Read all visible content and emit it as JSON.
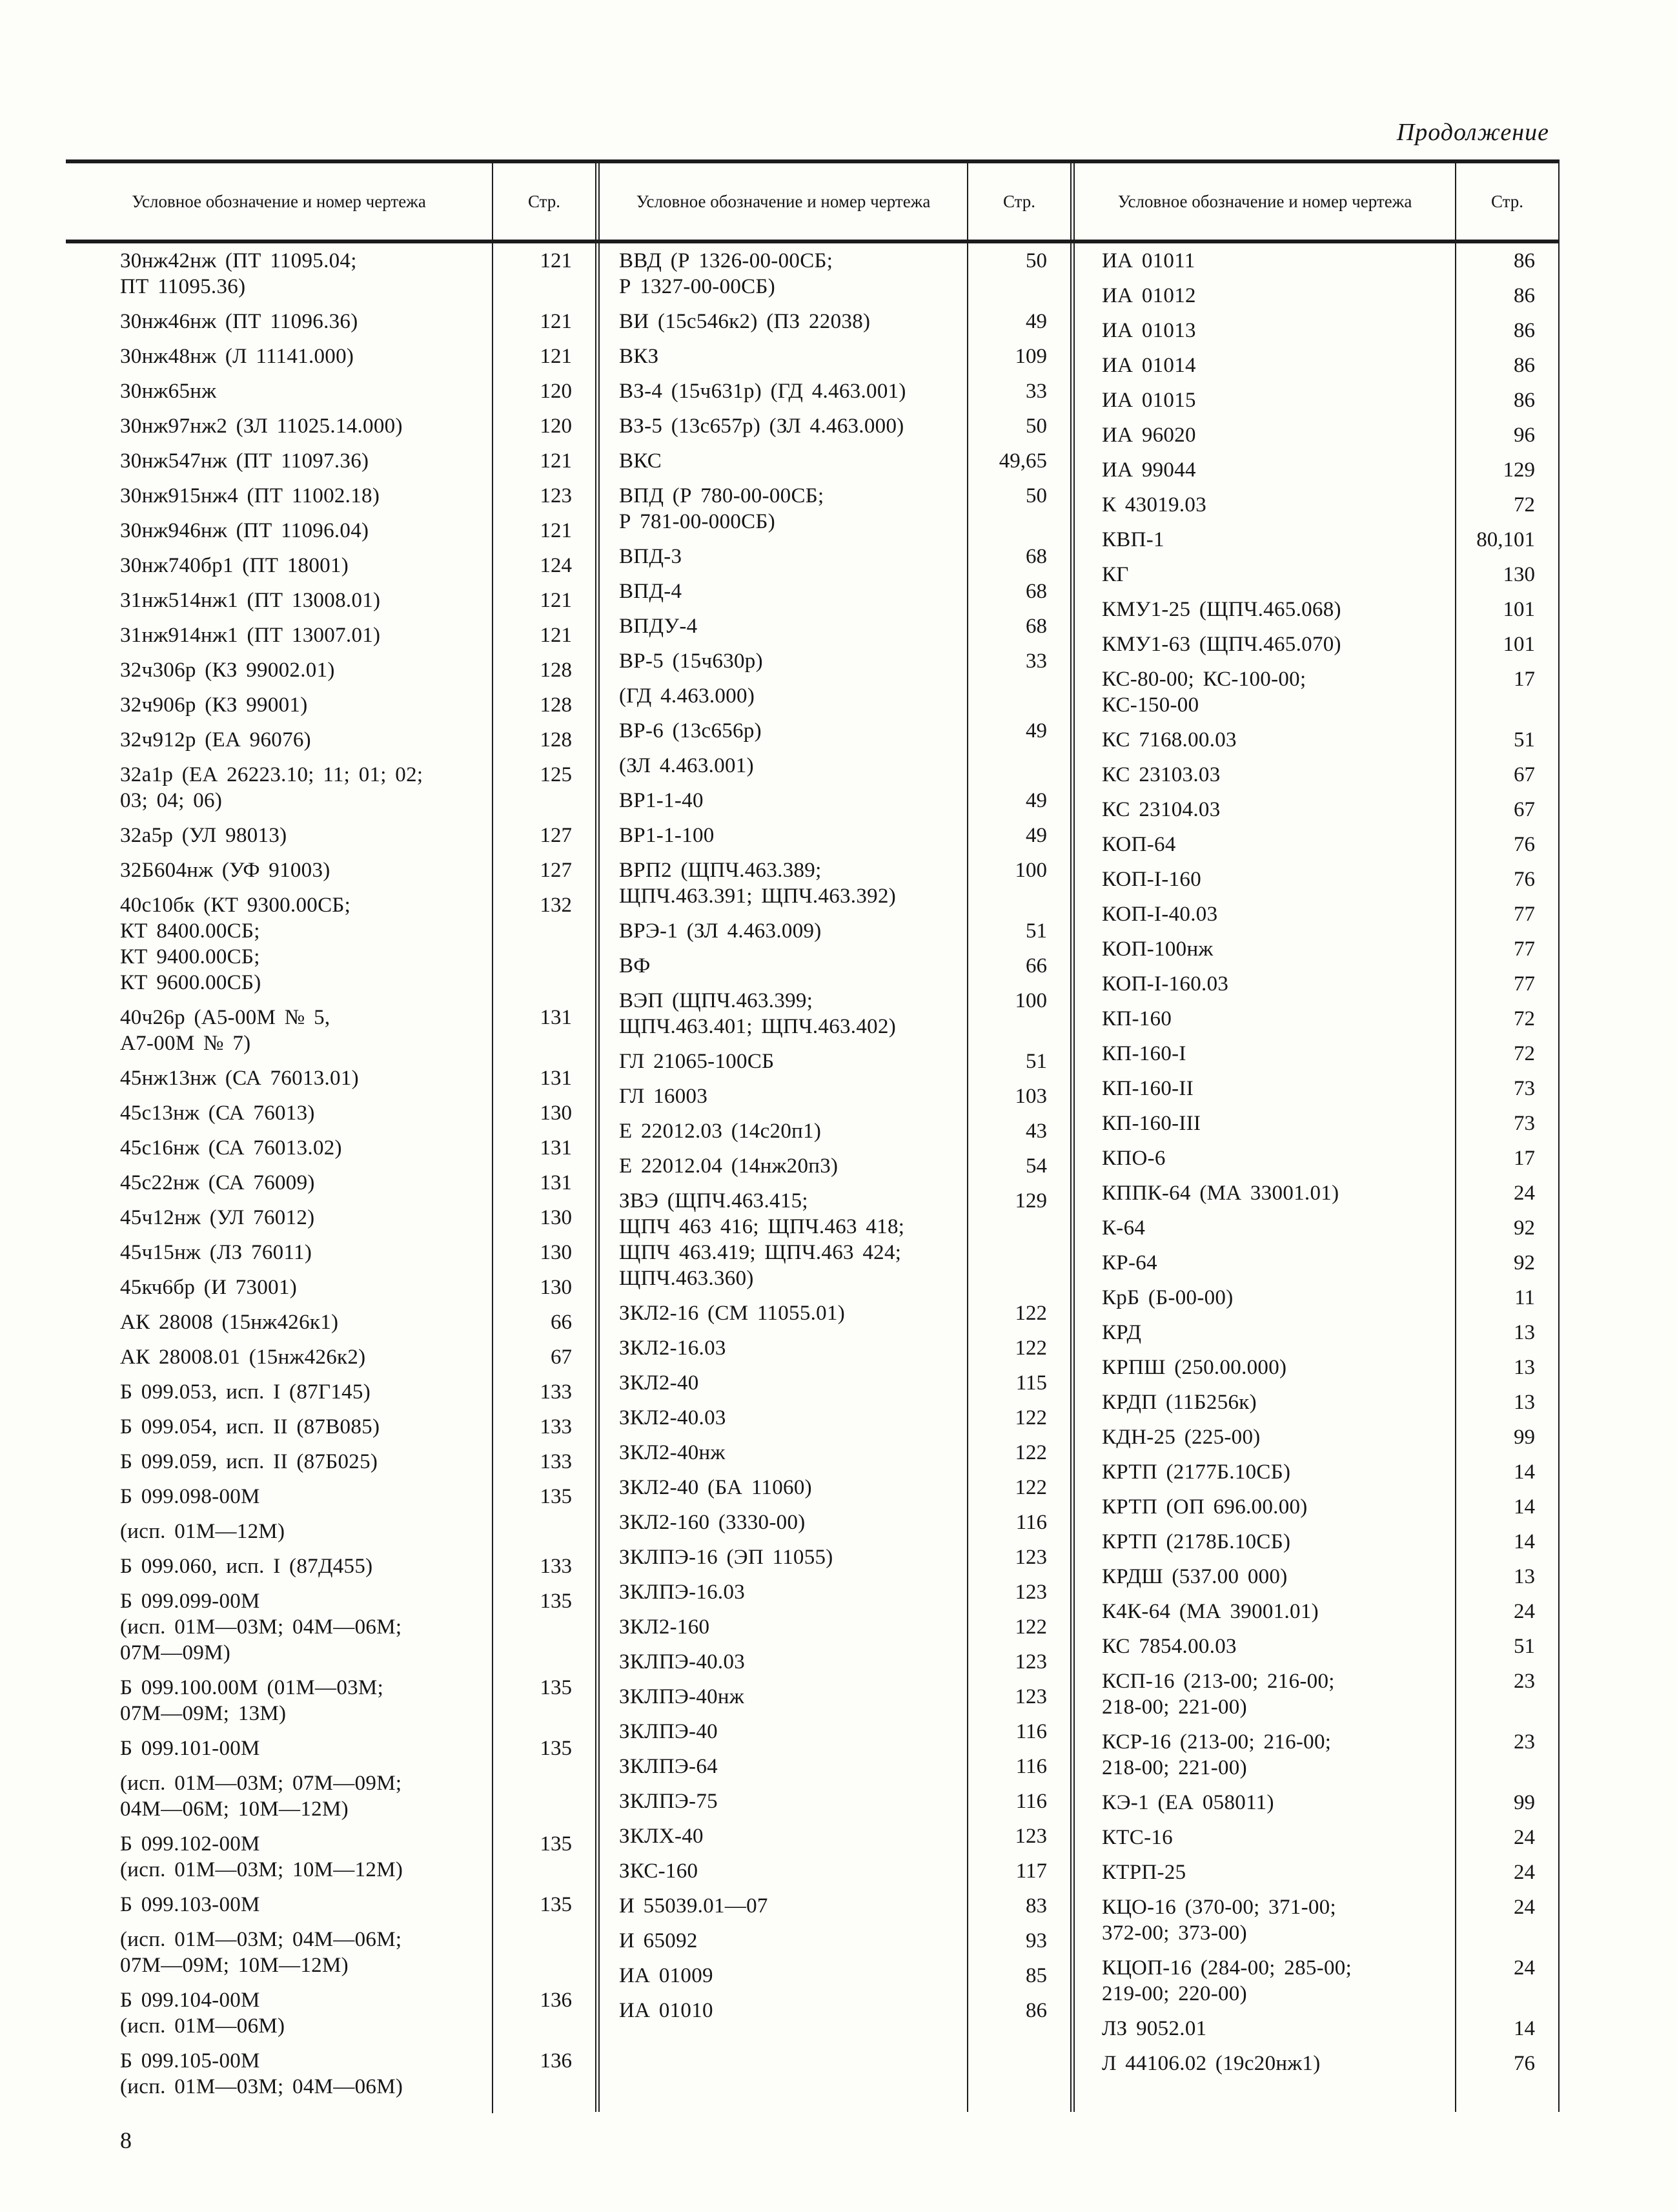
{
  "page": {
    "continuation_label": "Продолжение",
    "footer_page_number": "8"
  },
  "table": {
    "header": {
      "designation_label": "Условное обозначение и номер чертежа",
      "page_label": "Стр."
    },
    "columns": [
      {
        "entries": [
          {
            "lines": [
              "30нж42нж (ПТ 11095.04;",
              "ПТ 11095.36)"
            ],
            "page": "121"
          },
          {
            "lines": [
              "30нж46нж (ПТ 11096.36)"
            ],
            "page": "121"
          },
          {
            "lines": [
              "30нж48нж (Л 11141.000)"
            ],
            "page": "121"
          },
          {
            "lines": [
              "30нж65нж"
            ],
            "page": "120"
          },
          {
            "lines": [
              "30нж97нж2 (ЗЛ 11025.14.000)"
            ],
            "page": "120"
          },
          {
            "lines": [
              "30нж547нж (ПТ 11097.36)"
            ],
            "page": "121"
          },
          {
            "lines": [
              "30нж915нж4 (ПТ 11002.18)"
            ],
            "page": "123"
          },
          {
            "lines": [
              "30нж946нж (ПТ 11096.04)"
            ],
            "page": "121"
          },
          {
            "lines": [
              "30нж740бр1 (ПТ 18001)"
            ],
            "page": "124"
          },
          {
            "lines": [
              "31нж514нж1 (ПТ 13008.01)"
            ],
            "page": "121"
          },
          {
            "lines": [
              "31нж914нж1 (ПТ 13007.01)"
            ],
            "page": "121"
          },
          {
            "lines": [
              "32ч306р (КЗ 99002.01)"
            ],
            "page": "128"
          },
          {
            "lines": [
              "32ч906р (КЗ 99001)"
            ],
            "page": "128"
          },
          {
            "lines": [
              "32ч912р (ЕА 96076)"
            ],
            "page": "128"
          },
          {
            "lines": [
              "32а1р (ЕА 26223.10; 11; 01; 02;",
              "03; 04; 06)"
            ],
            "page": "125"
          },
          {
            "lines": [
              "32а5р (УЛ 98013)"
            ],
            "page": "127"
          },
          {
            "lines": [
              "32Б604нж (УФ 91003)"
            ],
            "page": "127"
          },
          {
            "lines": [
              "40с10бк (КТ 9300.00СБ;",
              "КТ 8400.00СБ;",
              "КТ 9400.00СБ;",
              "КТ 9600.00СБ)"
            ],
            "page": "132"
          },
          {
            "lines": [
              "40ч26р (А5-00М № 5,",
              "А7-00М № 7)"
            ],
            "page": "131"
          },
          {
            "lines": [
              "45нж13нж (СА 76013.01)"
            ],
            "page": "131"
          },
          {
            "lines": [
              "45с13нж (СА 76013)"
            ],
            "page": "130"
          },
          {
            "lines": [
              "45с16нж (СА 76013.02)"
            ],
            "page": "131"
          },
          {
            "lines": [
              "45с22нж (СА 76009)"
            ],
            "page": "131"
          },
          {
            "lines": [
              "45ч12нж (УЛ 76012)"
            ],
            "page": "130"
          },
          {
            "lines": [
              "45ч15нж (ЛЗ 76011)"
            ],
            "page": "130"
          },
          {
            "lines": [
              "45кч6бр (И 73001)"
            ],
            "page": "130"
          },
          {
            "lines": [
              "АК 28008 (15нж426к1)"
            ],
            "page": "66"
          },
          {
            "lines": [
              "АК 28008.01 (15нж426к2)"
            ],
            "page": "67"
          },
          {
            "lines": [
              "Б 099.053, исп. I (87Г145)"
            ],
            "page": "133"
          },
          {
            "lines": [
              "Б 099.054, исп. II (87В085)"
            ],
            "page": "133"
          },
          {
            "lines": [
              "Б 099.059, исп. II (87Б025)"
            ],
            "page": "133"
          },
          {
            "lines": [
              "Б 099.098-00М"
            ],
            "page": "135"
          },
          {
            "lines": [
              "(исп. 01М—12М)"
            ],
            "page": ""
          },
          {
            "lines": [
              "Б 099.060, исп. I (87Д455)"
            ],
            "page": "133"
          },
          {
            "lines": [
              "Б 099.099-00М",
              "(исп. 01М—03М; 04М—06М;",
              "07М—09М)"
            ],
            "page": "135"
          },
          {
            "lines": [
              "Б 099.100.00М (01М—03М;",
              "07М—09М; 13М)"
            ],
            "page": "135"
          },
          {
            "lines": [
              "Б 099.101-00М"
            ],
            "page": "135"
          },
          {
            "lines": [
              "(исп. 01М—03М; 07М—09М;",
              "04М—06М; 10М—12М)"
            ],
            "page": ""
          },
          {
            "lines": [
              "Б 099.102-00М",
              "(исп. 01М—03М; 10М—12М)"
            ],
            "page": "135"
          },
          {
            "lines": [
              "Б 099.103-00М"
            ],
            "page": "135"
          },
          {
            "lines": [
              "(исп. 01М—03М; 04М—06М;",
              "07М—09М; 10М—12М)"
            ],
            "page": ""
          },
          {
            "lines": [
              "Б 099.104-00М",
              "(исп. 01М—06М)"
            ],
            "page": "136"
          },
          {
            "lines": [
              "Б 099.105-00М",
              "(исп. 01М—03М; 04М—06М)"
            ],
            "page": "136"
          }
        ]
      },
      {
        "entries": [
          {
            "lines": [
              "ВВД (Р 1326-00-00СБ;",
              "Р 1327-00-00СБ)"
            ],
            "page": "50"
          },
          {
            "lines": [
              "ВИ (15с546к2) (ПЗ 22038)"
            ],
            "page": "49"
          },
          {
            "lines": [
              "ВКЗ"
            ],
            "page": "109"
          },
          {
            "lines": [
              "ВЗ-4 (15ч631р) (ГД 4.463.001)"
            ],
            "page": "33"
          },
          {
            "lines": [
              "ВЗ-5 (13с657р) (ЗЛ 4.463.000)"
            ],
            "page": "50"
          },
          {
            "lines": [
              "ВКС"
            ],
            "page": "49,65"
          },
          {
            "lines": [
              "ВПД (Р 780-00-00СБ;",
              "Р 781-00-000СБ)"
            ],
            "page": "50"
          },
          {
            "lines": [
              "ВПД-3"
            ],
            "page": "68"
          },
          {
            "lines": [
              "ВПД-4"
            ],
            "page": "68"
          },
          {
            "lines": [
              "ВПДУ-4"
            ],
            "page": "68"
          },
          {
            "lines": [
              "ВР-5 (15ч630р)"
            ],
            "page": "33"
          },
          {
            "lines": [
              "(ГД 4.463.000)"
            ],
            "page": ""
          },
          {
            "lines": [
              "ВР-6 (13с656р)"
            ],
            "page": "49"
          },
          {
            "lines": [
              "(ЗЛ 4.463.001)"
            ],
            "page": ""
          },
          {
            "lines": [
              "ВР1-1-40"
            ],
            "page": "49"
          },
          {
            "lines": [
              "ВР1-1-100"
            ],
            "page": "49"
          },
          {
            "lines": [
              "ВРП2 (ЩПЧ.463.389;",
              "ЩПЧ.463.391; ЩПЧ.463.392)"
            ],
            "page": "100"
          },
          {
            "lines": [
              "ВРЭ-1 (ЗЛ 4.463.009)"
            ],
            "page": "51"
          },
          {
            "lines": [
              "ВФ"
            ],
            "page": "66"
          },
          {
            "lines": [
              "ВЭП (ЩПЧ.463.399;",
              "ЩПЧ.463.401; ЩПЧ.463.402)"
            ],
            "page": "100"
          },
          {
            "lines": [
              "ГЛ 21065-100СБ"
            ],
            "page": "51"
          },
          {
            "lines": [
              "ГЛ 16003"
            ],
            "page": "103"
          },
          {
            "lines": [
              "Е 22012.03 (14с20п1)"
            ],
            "page": "43"
          },
          {
            "lines": [
              "Е 22012.04 (14нж20п3)"
            ],
            "page": "54"
          },
          {
            "lines": [
              "ЗВЭ (ЩПЧ.463.415;",
              "ЩПЧ 463 416; ЩПЧ.463 418;",
              "ЩПЧ 463.419; ЩПЧ.463 424;",
              "ЩПЧ.463.360)"
            ],
            "page": "129"
          },
          {
            "lines": [
              "ЗКЛ2-16 (СМ 11055.01)"
            ],
            "page": "122"
          },
          {
            "lines": [
              "ЗКЛ2-16.03"
            ],
            "page": "122"
          },
          {
            "lines": [
              "ЗКЛ2-40"
            ],
            "page": "115"
          },
          {
            "lines": [
              "ЗКЛ2-40.03"
            ],
            "page": "122"
          },
          {
            "lines": [
              "ЗКЛ2-40нж"
            ],
            "page": "122"
          },
          {
            "lines": [
              "ЗКЛ2-40 (БА 11060)"
            ],
            "page": "122"
          },
          {
            "lines": [
              "ЗКЛ2-160 (3330-00)"
            ],
            "page": "116"
          },
          {
            "lines": [
              "ЗКЛПЭ-16 (ЭП 11055)"
            ],
            "page": "123"
          },
          {
            "lines": [
              "ЗКЛПЭ-16.03"
            ],
            "page": "123"
          },
          {
            "lines": [
              "ЗКЛ2-160"
            ],
            "page": "122"
          },
          {
            "lines": [
              "ЗКЛПЭ-40.03"
            ],
            "page": "123"
          },
          {
            "lines": [
              "ЗКЛПЭ-40нж"
            ],
            "page": "123"
          },
          {
            "lines": [
              "ЗКЛПЭ-40"
            ],
            "page": "116"
          },
          {
            "lines": [
              "ЗКЛПЭ-64"
            ],
            "page": "116"
          },
          {
            "lines": [
              "ЗКЛПЭ-75"
            ],
            "page": "116"
          },
          {
            "lines": [
              "ЗКЛХ-40"
            ],
            "page": "123"
          },
          {
            "lines": [
              "ЗКС-160"
            ],
            "page": "117"
          },
          {
            "lines": [
              "И 55039.01—07"
            ],
            "page": "83"
          },
          {
            "lines": [
              "И 65092"
            ],
            "page": "93"
          },
          {
            "lines": [
              "ИА 01009"
            ],
            "page": "85"
          },
          {
            "lines": [
              "ИА 01010"
            ],
            "page": "86"
          }
        ]
      },
      {
        "entries": [
          {
            "lines": [
              "ИА 01011"
            ],
            "page": "86"
          },
          {
            "lines": [
              "ИА 01012"
            ],
            "page": "86"
          },
          {
            "lines": [
              "ИА 01013"
            ],
            "page": "86"
          },
          {
            "lines": [
              "ИА 01014"
            ],
            "page": "86"
          },
          {
            "lines": [
              "ИА 01015"
            ],
            "page": "86"
          },
          {
            "lines": [
              "ИА 96020"
            ],
            "page": "96"
          },
          {
            "lines": [
              "ИА 99044"
            ],
            "page": "129"
          },
          {
            "lines": [
              "К 43019.03"
            ],
            "page": "72"
          },
          {
            "lines": [
              "КВП-1"
            ],
            "page": "80,101"
          },
          {
            "lines": [
              "КГ"
            ],
            "page": "130"
          },
          {
            "lines": [
              "КМУ1-25 (ЩПЧ.465.068)"
            ],
            "page": "101"
          },
          {
            "lines": [
              "КМУ1-63 (ЩПЧ.465.070)"
            ],
            "page": "101"
          },
          {
            "lines": [
              "КС-80-00; КС-100-00;",
              "КС-150-00"
            ],
            "page": "17"
          },
          {
            "lines": [
              "КС 7168.00.03"
            ],
            "page": "51"
          },
          {
            "lines": [
              "КС 23103.03"
            ],
            "page": "67"
          },
          {
            "lines": [
              "КС 23104.03"
            ],
            "page": "67"
          },
          {
            "lines": [
              "КОП-64"
            ],
            "page": "76"
          },
          {
            "lines": [
              "КОП-I-160"
            ],
            "page": "76"
          },
          {
            "lines": [
              "КОП-I-40.03"
            ],
            "page": "77"
          },
          {
            "lines": [
              "КОП-100нж"
            ],
            "page": "77"
          },
          {
            "lines": [
              "КОП-I-160.03"
            ],
            "page": "77"
          },
          {
            "lines": [
              "КП-160"
            ],
            "page": "72"
          },
          {
            "lines": [
              "КП-160-I"
            ],
            "page": "72"
          },
          {
            "lines": [
              "КП-160-II"
            ],
            "page": "73"
          },
          {
            "lines": [
              "КП-160-III"
            ],
            "page": "73"
          },
          {
            "lines": [
              "КПО-6"
            ],
            "page": "17"
          },
          {
            "lines": [
              "КППК-64 (МА 33001.01)"
            ],
            "page": "24"
          },
          {
            "lines": [
              "К-64"
            ],
            "page": "92"
          },
          {
            "lines": [
              "КР-64"
            ],
            "page": "92"
          },
          {
            "lines": [
              "КрБ (Б-00-00)"
            ],
            "page": "11"
          },
          {
            "lines": [
              "КРД"
            ],
            "page": "13"
          },
          {
            "lines": [
              "КРПШ (250.00.000)"
            ],
            "page": "13"
          },
          {
            "lines": [
              "КРДП (11Б256к)"
            ],
            "page": "13"
          },
          {
            "lines": [
              "КДН-25 (225-00)"
            ],
            "page": "99"
          },
          {
            "lines": [
              "КРТП (2177Б.10СБ)"
            ],
            "page": "14"
          },
          {
            "lines": [
              "КРТП (ОП 696.00.00)"
            ],
            "page": "14"
          },
          {
            "lines": [
              "КРТП (2178Б.10СБ)"
            ],
            "page": "14"
          },
          {
            "lines": [
              "КРДШ (537.00 000)"
            ],
            "page": "13"
          },
          {
            "lines": [
              "К4К-64 (МА 39001.01)"
            ],
            "page": "24"
          },
          {
            "lines": [
              "КС 7854.00.03"
            ],
            "page": "51"
          },
          {
            "lines": [
              "КСП-16 (213-00; 216-00;",
              "218-00; 221-00)"
            ],
            "page": "23"
          },
          {
            "lines": [
              "КСР-16 (213-00; 216-00;",
              "218-00; 221-00)"
            ],
            "page": "23"
          },
          {
            "lines": [
              "КЭ-1 (ЕА 058011)"
            ],
            "page": "99"
          },
          {
            "lines": [
              "КТС-16"
            ],
            "page": "24"
          },
          {
            "lines": [
              "КТРП-25"
            ],
            "page": "24"
          },
          {
            "lines": [
              "КЦО-16 (370-00; 371-00;",
              "372-00; 373-00)"
            ],
            "page": "24"
          },
          {
            "lines": [
              "КЦОП-16 (284-00; 285-00;",
              "219-00; 220-00)"
            ],
            "page": "24"
          },
          {
            "lines": [
              "ЛЗ 9052.01"
            ],
            "page": "14"
          },
          {
            "lines": [
              "Л 44106.02 (19с20нж1)"
            ],
            "page": "76"
          }
        ]
      }
    ]
  }
}
